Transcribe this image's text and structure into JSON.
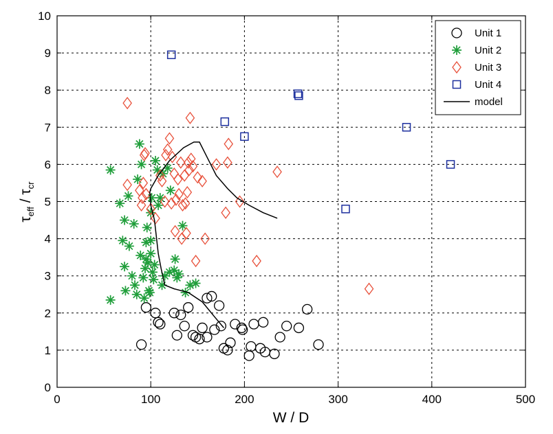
{
  "chart_data": {
    "type": "scatter",
    "xlabel": "W / D",
    "ylabel_main": "τ",
    "ylabel_main_sub": "eff",
    "ylabel_sep": " / ",
    "ylabel_den": "τ",
    "ylabel_den_sub": "cr",
    "xlim": [
      0,
      500
    ],
    "ylim": [
      0,
      10
    ],
    "xticks": [
      "0",
      "100",
      "200",
      "300",
      "400",
      "500"
    ],
    "yticks": [
      "0",
      "1",
      "2",
      "3",
      "4",
      "5",
      "6",
      "7",
      "8",
      "9",
      "10"
    ],
    "grid": true,
    "legend_position": "top-right",
    "series": [
      {
        "name": "Unit 1",
        "marker": "circle",
        "color": "#000000",
        "points": [
          [
            90,
            1.15
          ],
          [
            95,
            2.15
          ],
          [
            105,
            2.0
          ],
          [
            108,
            1.75
          ],
          [
            110,
            1.7
          ],
          [
            125,
            2.0
          ],
          [
            128,
            1.4
          ],
          [
            132,
            1.95
          ],
          [
            136,
            1.65
          ],
          [
            140,
            2.15
          ],
          [
            145,
            1.4
          ],
          [
            148,
            1.35
          ],
          [
            152,
            1.3
          ],
          [
            155,
            1.6
          ],
          [
            160,
            1.35
          ],
          [
            160,
            2.4
          ],
          [
            165,
            2.45
          ],
          [
            168,
            1.55
          ],
          [
            173,
            2.2
          ],
          [
            175,
            1.65
          ],
          [
            178,
            1.05
          ],
          [
            182,
            1.0
          ],
          [
            185,
            1.2
          ],
          [
            190,
            1.7
          ],
          [
            197,
            1.6
          ],
          [
            198,
            1.55
          ],
          [
            205,
            0.85
          ],
          [
            207,
            1.1
          ],
          [
            210,
            1.7
          ],
          [
            217,
            1.05
          ],
          [
            220,
            1.75
          ],
          [
            222,
            0.95
          ],
          [
            232,
            0.9
          ],
          [
            238,
            1.35
          ],
          [
            245,
            1.65
          ],
          [
            258,
            1.6
          ],
          [
            267,
            2.1
          ],
          [
            279,
            1.15
          ]
        ]
      },
      {
        "name": "Unit 2",
        "marker": "star",
        "color": "#1f9e3a",
        "points": [
          [
            57,
            2.35
          ],
          [
            57,
            5.85
          ],
          [
            67,
            4.95
          ],
          [
            70,
            3.95
          ],
          [
            72,
            4.5
          ],
          [
            72,
            3.25
          ],
          [
            73,
            2.6
          ],
          [
            76,
            5.15
          ],
          [
            77,
            3.8
          ],
          [
            80,
            3.0
          ],
          [
            82,
            4.4
          ],
          [
            83,
            2.75
          ],
          [
            85,
            2.5
          ],
          [
            86,
            5.6
          ],
          [
            88,
            6.55
          ],
          [
            89,
            3.55
          ],
          [
            90,
            6.0
          ],
          [
            92,
            2.95
          ],
          [
            93,
            2.4
          ],
          [
            94,
            3.2
          ],
          [
            95,
            3.9
          ],
          [
            96,
            4.3
          ],
          [
            97,
            3.35
          ],
          [
            98,
            2.6
          ],
          [
            99,
            2.55
          ],
          [
            100,
            3.6
          ],
          [
            100,
            4.7
          ],
          [
            101,
            5.1
          ],
          [
            102,
            3.1
          ],
          [
            103,
            2.9
          ],
          [
            104,
            3.3
          ],
          [
            105,
            6.1
          ],
          [
            107,
            5.85
          ],
          [
            108,
            4.9
          ],
          [
            110,
            5.1
          ],
          [
            112,
            2.75
          ],
          [
            113,
            5.75
          ],
          [
            115,
            3.0
          ],
          [
            118,
            5.9
          ],
          [
            120,
            3.1
          ],
          [
            121,
            5.3
          ],
          [
            125,
            3.15
          ],
          [
            126,
            3.45
          ],
          [
            128,
            2.95
          ],
          [
            130,
            3.05
          ],
          [
            134,
            4.35
          ],
          [
            137,
            2.55
          ],
          [
            142,
            2.75
          ],
          [
            148,
            2.8
          ],
          [
            95,
            3.45
          ],
          [
            100,
            3.95
          ]
        ]
      },
      {
        "name": "Unit 3",
        "marker": "diamond",
        "color": "#e8503a",
        "points": [
          [
            75,
            7.65
          ],
          [
            75,
            5.45
          ],
          [
            88,
            5.3
          ],
          [
            90,
            4.9
          ],
          [
            91,
            5.1
          ],
          [
            92,
            5.5
          ],
          [
            93,
            6.25
          ],
          [
            94,
            6.3
          ],
          [
            95,
            5.2
          ],
          [
            100,
            4.8
          ],
          [
            105,
            4.55
          ],
          [
            110,
            5.7
          ],
          [
            112,
            5.55
          ],
          [
            115,
            5.0
          ],
          [
            116,
            6.25
          ],
          [
            118,
            6.4
          ],
          [
            120,
            6.7
          ],
          [
            122,
            4.95
          ],
          [
            123,
            6.2
          ],
          [
            125,
            5.75
          ],
          [
            126,
            4.2
          ],
          [
            127,
            5.05
          ],
          [
            129,
            5.6
          ],
          [
            130,
            5.2
          ],
          [
            132,
            6.05
          ],
          [
            133,
            4.0
          ],
          [
            134,
            4.9
          ],
          [
            136,
            5.7
          ],
          [
            137,
            4.95
          ],
          [
            139,
            5.25
          ],
          [
            140,
            6.05
          ],
          [
            141,
            5.85
          ],
          [
            142,
            7.25
          ],
          [
            145,
            5.95
          ],
          [
            148,
            3.4
          ],
          [
            150,
            5.65
          ],
          [
            155,
            5.55
          ],
          [
            158,
            4.0
          ],
          [
            170,
            6.0
          ],
          [
            180,
            4.7
          ],
          [
            182,
            6.05
          ],
          [
            183,
            6.55
          ],
          [
            195,
            5.0
          ],
          [
            213,
            3.4
          ],
          [
            235,
            5.8
          ],
          [
            333,
            2.65
          ],
          [
            143,
            6.15
          ],
          [
            138,
            4.15
          ]
        ]
      },
      {
        "name": "Unit 4",
        "marker": "square",
        "color": "#1c2f9e",
        "points": [
          [
            122,
            8.95
          ],
          [
            179,
            7.15
          ],
          [
            200,
            6.75
          ],
          [
            257,
            7.9
          ],
          [
            258,
            7.85
          ],
          [
            308,
            4.8
          ],
          [
            373,
            7.0
          ],
          [
            420,
            6.0
          ]
        ]
      },
      {
        "name": "model",
        "marker": "line",
        "color": "#000000",
        "points": [
          [
            178,
            1.6
          ],
          [
            168,
            1.9
          ],
          [
            155,
            2.3
          ],
          [
            140,
            2.55
          ],
          [
            125,
            2.65
          ],
          [
            115,
            2.75
          ],
          [
            111,
            3.2
          ],
          [
            108,
            3.6
          ],
          [
            104,
            4.5
          ],
          [
            100,
            4.9
          ],
          [
            99,
            5.25
          ],
          [
            100,
            5.35
          ],
          [
            108,
            5.7
          ],
          [
            120,
            6.1
          ],
          [
            135,
            6.45
          ],
          [
            146,
            6.6
          ],
          [
            152,
            6.6
          ],
          [
            160,
            6.2
          ],
          [
            170,
            5.7
          ],
          [
            182,
            5.35
          ],
          [
            192,
            5.1
          ],
          [
            205,
            4.9
          ],
          [
            220,
            4.7
          ],
          [
            235,
            4.55
          ]
        ]
      }
    ]
  }
}
